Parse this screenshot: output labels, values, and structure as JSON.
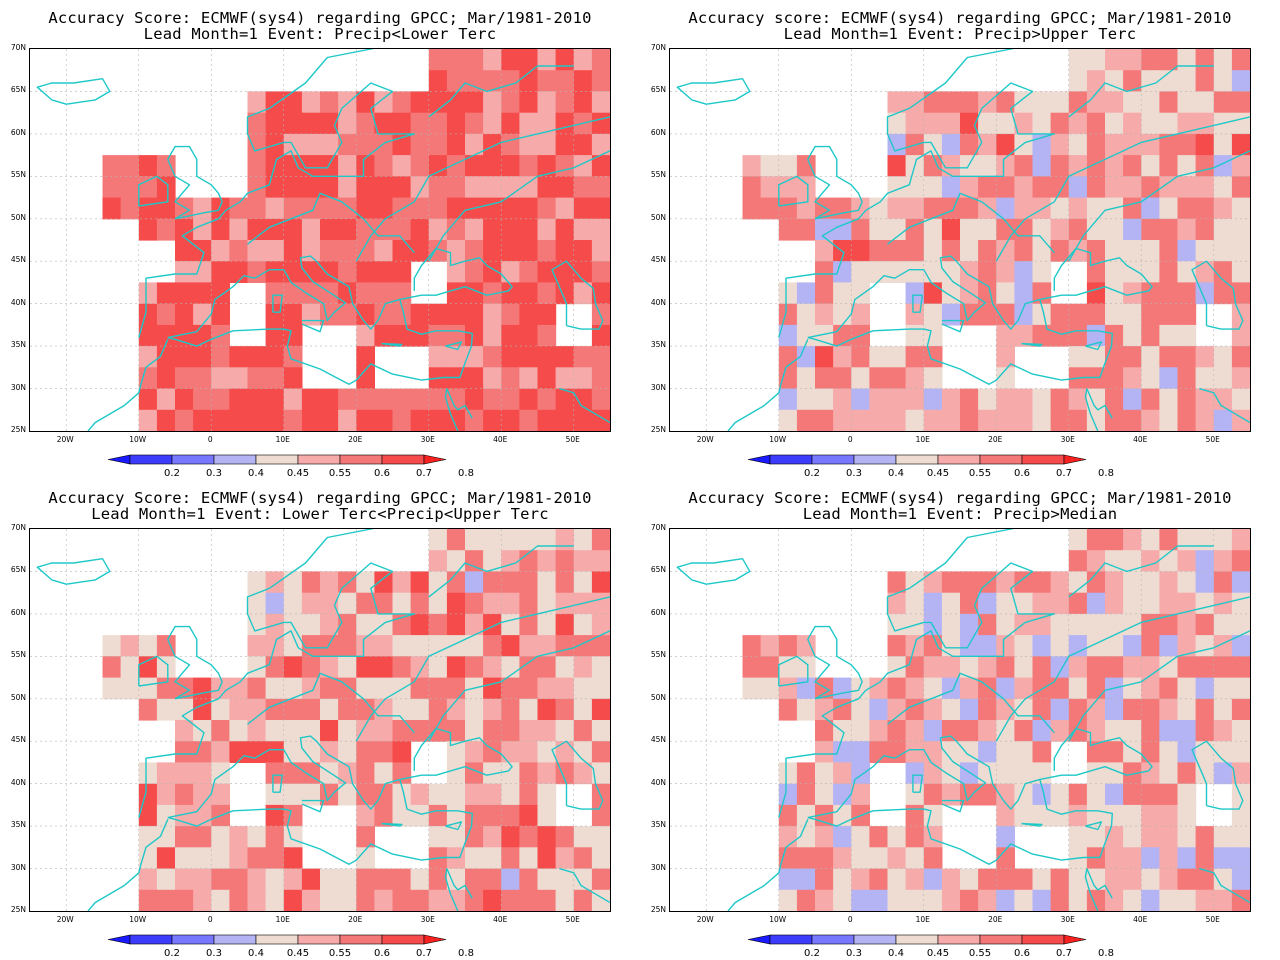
{
  "panels": [
    {
      "title_line1": "Accuracy Score: ECMWF(sys4) regarding GPCC; Mar/1981-2010",
      "title_line2": "Lead Month=1 Event: Precip<Lower Terc",
      "bias": 0.55,
      "seed": 11
    },
    {
      "title_line1": "Accuracy score: ECMWF(sys4) regarding GPCC; Mar/1981-2010",
      "title_line2": "Lead Month=1 Event: Precip>Upper Terc",
      "bias": 0.05,
      "seed": 23
    },
    {
      "title_line1": "Accuracy Score: ECMWF(sys4) regarding GPCC; Mar/1981-2010",
      "title_line2": "Lead Month=1 Event: Lower Terc<Precip<Upper Terc",
      "bias": 0.1,
      "seed": 37
    },
    {
      "title_line1": "Accuracy Score: ECMWF(sys4) regarding GPCC; Mar/1981-2010",
      "title_line2": "Lead Month=1 Event: Precip>Median",
      "bias": -0.05,
      "seed": 51
    }
  ],
  "axes": {
    "lat_labels": [
      "70N",
      "65N",
      "60N",
      "55N",
      "50N",
      "45N",
      "40N",
      "35N",
      "30N",
      "25N"
    ],
    "lon_labels": [
      "20W",
      "10W",
      "0",
      "10E",
      "20E",
      "30E",
      "40E",
      "50E"
    ]
  },
  "colorbar": {
    "labels": [
      "0.2",
      "0.3",
      "0.4",
      "0.45",
      "0.55",
      "0.6",
      "0.7",
      "0.8"
    ],
    "colors": [
      "#1a1aff",
      "#3c3cff",
      "#7878ff",
      "#b4b4f5",
      "#eedcd2",
      "#f7aaaa",
      "#f57878",
      "#f54b4b",
      "#f52020"
    ]
  },
  "colors": {
    "coastline": "#1ec8c8",
    "grid": "#b4b4b4"
  }
}
